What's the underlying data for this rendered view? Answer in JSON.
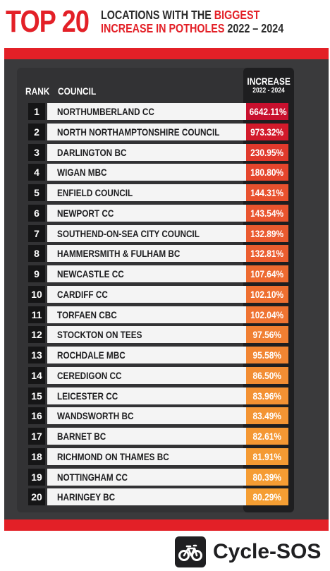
{
  "header": {
    "title_big": "TOP 20",
    "subtitle_line1_a": "LOCATIONS WITH THE ",
    "subtitle_line1_b": "BIGGEST",
    "subtitle_line2_a": "INCREASE IN POTHOLES ",
    "subtitle_line2_b": "2022 – 2024"
  },
  "table": {
    "rank_header": "RANK",
    "council_header": "COUNCIL",
    "increase_header": "INCREASE",
    "increase_subheader": "2022 - 2024",
    "rows": [
      {
        "rank": "1",
        "council": "NORTHUMBERLAND CC",
        "increase": "6642.11%",
        "color": "#c8102e"
      },
      {
        "rank": "2",
        "council": "NORTH NORTHAMPTONSHIRE COUNCIL",
        "increase": "973.32%",
        "color": "#d21a2b"
      },
      {
        "rank": "3",
        "council": "DARLINGTON BC",
        "increase": "230.95%",
        "color": "#e0392c"
      },
      {
        "rank": "4",
        "council": "WIGAN MBC",
        "increase": "180.80%",
        "color": "#e5452c"
      },
      {
        "rank": "5",
        "council": "ENFIELD COUNCIL",
        "increase": "144.31%",
        "color": "#e8512e"
      },
      {
        "rank": "6",
        "council": "NEWPORT CC",
        "increase": "143.54%",
        "color": "#e9542e"
      },
      {
        "rank": "7",
        "council": "SOUTHEND-ON-SEA CITY COUNCIL",
        "increase": "132.89%",
        "color": "#ea5a2f"
      },
      {
        "rank": "8",
        "council": "HAMMERSMITH & FULHAM BC",
        "increase": "132.81%",
        "color": "#eb5d2f"
      },
      {
        "rank": "9",
        "council": "NEWCASTLE CC",
        "increase": "107.64%",
        "color": "#ed6a30"
      },
      {
        "rank": "10",
        "council": "CARDIFF CC",
        "increase": "102.10%",
        "color": "#ee6f30"
      },
      {
        "rank": "11",
        "council": "TORFAEN CBC",
        "increase": "102.04%",
        "color": "#ef7331"
      },
      {
        "rank": "12",
        "council": "STOCKTON ON TEES",
        "increase": "97.56%",
        "color": "#f07f32"
      },
      {
        "rank": "13",
        "council": "ROCHDALE MBC",
        "increase": "95.58%",
        "color": "#f18532"
      },
      {
        "rank": "14",
        "council": "CEREDIGON CC",
        "increase": "86.50%",
        "color": "#f28d33"
      },
      {
        "rank": "15",
        "council": "LEICESTER CC",
        "increase": "83.96%",
        "color": "#f39133"
      },
      {
        "rank": "16",
        "council": "WANDSWORTH BC",
        "increase": "83.49%",
        "color": "#f39433"
      },
      {
        "rank": "17",
        "council": "BARNET BC",
        "increase": "82.61%",
        "color": "#f49733"
      },
      {
        "rank": "18",
        "council": "RICHMOND ON THAMES BC",
        "increase": "81.91%",
        "color": "#f49a33"
      },
      {
        "rank": "19",
        "council": "NOTTINGHAM CC",
        "increase": "80.39%",
        "color": "#f59c33"
      },
      {
        "rank": "20",
        "council": "HARINGEY BC",
        "increase": "80.29%",
        "color": "#f59e33"
      }
    ]
  },
  "brand": {
    "name": "Cycle-SOS",
    "icon": "bicycle-icon"
  },
  "colors": {
    "accent_red": "#e32027",
    "panel": "#3a3a3c"
  }
}
